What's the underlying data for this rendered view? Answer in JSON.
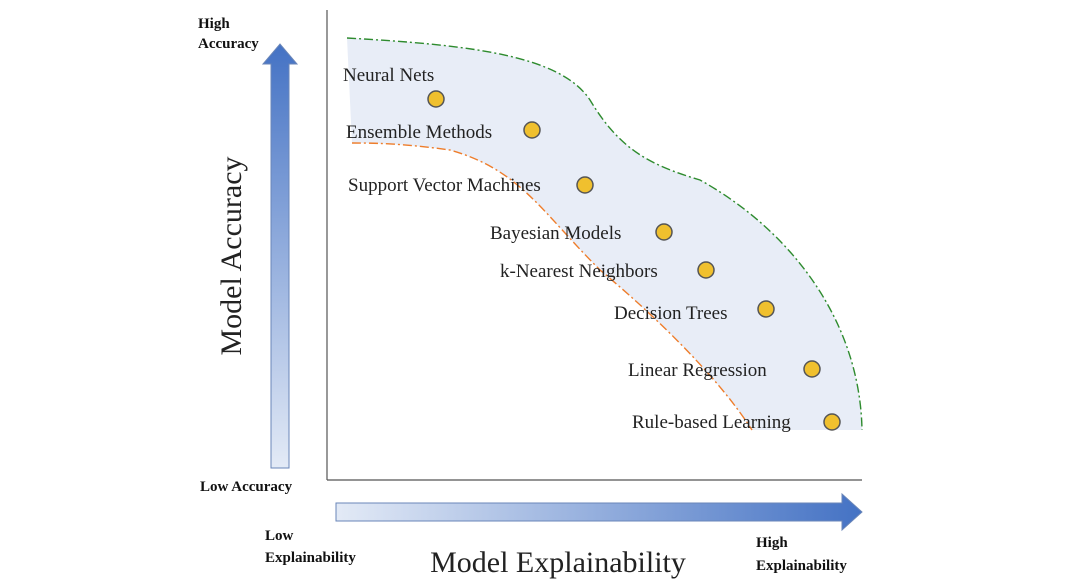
{
  "y_axis": {
    "title": "Model Accuracy",
    "high_label": [
      "High",
      "Accuracy"
    ],
    "low_label": "Low Accuracy"
  },
  "x_axis": {
    "title": "Model Explainability",
    "low_label": [
      "Low",
      "Explainability"
    ],
    "high_label": [
      "High",
      "Explainability"
    ]
  },
  "colors": {
    "band_fill": "#e8edf7",
    "upper_boundary": "#2e8b2e",
    "lower_boundary": "#ee7d2b",
    "marker_fill": "#f0c02e",
    "marker_stroke": "#555555",
    "arrow_dark": "#4472c4",
    "arrow_light": "#e3eaf6"
  },
  "models": [
    {
      "name": "Neural Nets"
    },
    {
      "name": "Ensemble Methods"
    },
    {
      "name": "Support Vector Machines"
    },
    {
      "name": "Bayesian Models"
    },
    {
      "name": "k-Nearest Neighbors"
    },
    {
      "name": "Decision Trees"
    },
    {
      "name": "Linear Regression"
    },
    {
      "name": "Rule-based Learning"
    }
  ]
}
